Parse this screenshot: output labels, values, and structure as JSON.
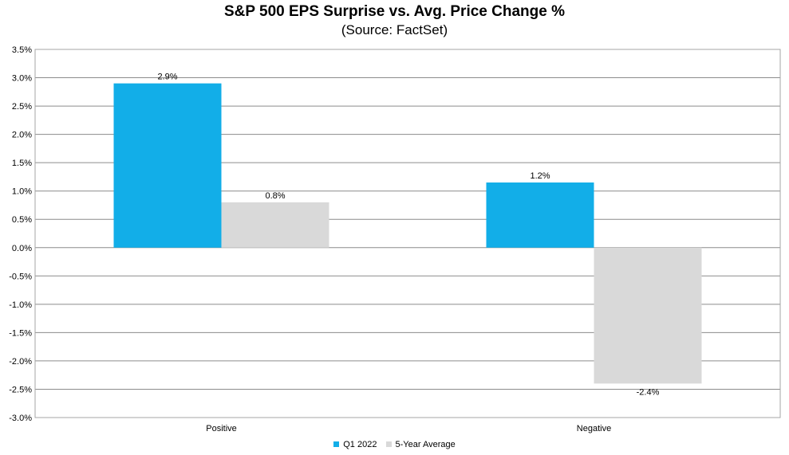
{
  "chart_data": {
    "type": "bar",
    "title": "S&P 500 EPS Surprise vs. Avg. Price Change %",
    "subtitle": "(Source: FactSet)",
    "categories": [
      "Positive",
      "Negative"
    ],
    "series": [
      {
        "name": "Q1 2022",
        "values": [
          2.9,
          1.15
        ],
        "labels": [
          "2.9%",
          "1.2%"
        ],
        "color": "#12aee8"
      },
      {
        "name": "5-Year Average",
        "values": [
          0.8,
          -2.4
        ],
        "labels": [
          "0.8%",
          "-2.4%"
        ],
        "color": "#d9d9d9"
      }
    ],
    "ylim": [
      -3.0,
      3.5
    ],
    "ystep": 0.5,
    "ytick_labels": [
      "-3.0%",
      "-2.5%",
      "-2.0%",
      "-1.5%",
      "-1.0%",
      "-0.5%",
      "0.0%",
      "0.5%",
      "1.0%",
      "1.5%",
      "2.0%",
      "2.5%",
      "3.0%",
      "3.5%"
    ],
    "grid": true,
    "legend_position": "bottom"
  }
}
